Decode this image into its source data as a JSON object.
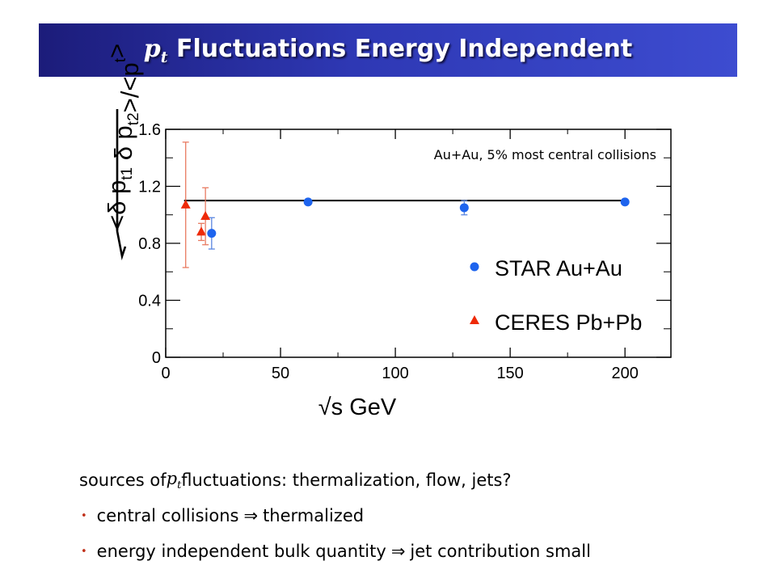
{
  "slide": {
    "title_var": "p",
    "title_sub": "t",
    "title_rest": " Fluctuations Energy Independent",
    "lines": [
      {
        "pre": "sources of ",
        "var": "p",
        "sub": "t",
        "post": " fluctuations: thermalization, flow, jets?"
      },
      {
        "pre": "central collisions ",
        "arrow": "⇒",
        "post": " thermalized"
      },
      {
        "pre": "energy independent bulk quantity ",
        "arrow": "⇒",
        "post": " jet contribution small"
      }
    ],
    "bullet_symbol": "•"
  },
  "chart_data": {
    "type": "scatter",
    "title": "",
    "annotation": "Au+Au, 5% most central collisions",
    "xlabel": "√s GeV",
    "ylabel": "√<δ pt1 δ pt2>/<pt>",
    "xlim": [
      0,
      220
    ],
    "ylim": [
      0,
      1.6
    ],
    "x_ticks": [
      0,
      50,
      100,
      150,
      200
    ],
    "y_ticks": [
      0,
      0.4,
      0.8,
      1.2,
      1.6
    ],
    "x_tick_labels": [
      "0",
      "50",
      "100",
      "150",
      "200"
    ],
    "y_tick_labels": [
      "0",
      "0.4",
      "0.8",
      "1.2",
      "1.6"
    ],
    "legend_position": "bottom-right",
    "reference_line": {
      "x_start": 8,
      "x_end": 200,
      "y": 1.1,
      "color": "#000000"
    },
    "series": [
      {
        "name": "STAR Au+Au",
        "marker": "circle",
        "color": "#1e64ee",
        "error_color": "#5a86e0",
        "points": [
          {
            "x": 20,
            "y": 0.87,
            "err": 0.11
          },
          {
            "x": 62,
            "y": 1.09,
            "err": 0.0
          },
          {
            "x": 130,
            "y": 1.05,
            "err": 0.05
          },
          {
            "x": 200,
            "y": 1.09,
            "err": 0.0
          }
        ]
      },
      {
        "name": "CERES Pb+Pb",
        "marker": "triangle",
        "color": "#ee2a08",
        "error_color": "#e87a60",
        "points": [
          {
            "x": 8.7,
            "y": 1.07,
            "err": 0.44
          },
          {
            "x": 15.5,
            "y": 0.88,
            "err": 0.06
          },
          {
            "x": 17.3,
            "y": 0.99,
            "err": 0.2
          }
        ]
      }
    ]
  }
}
